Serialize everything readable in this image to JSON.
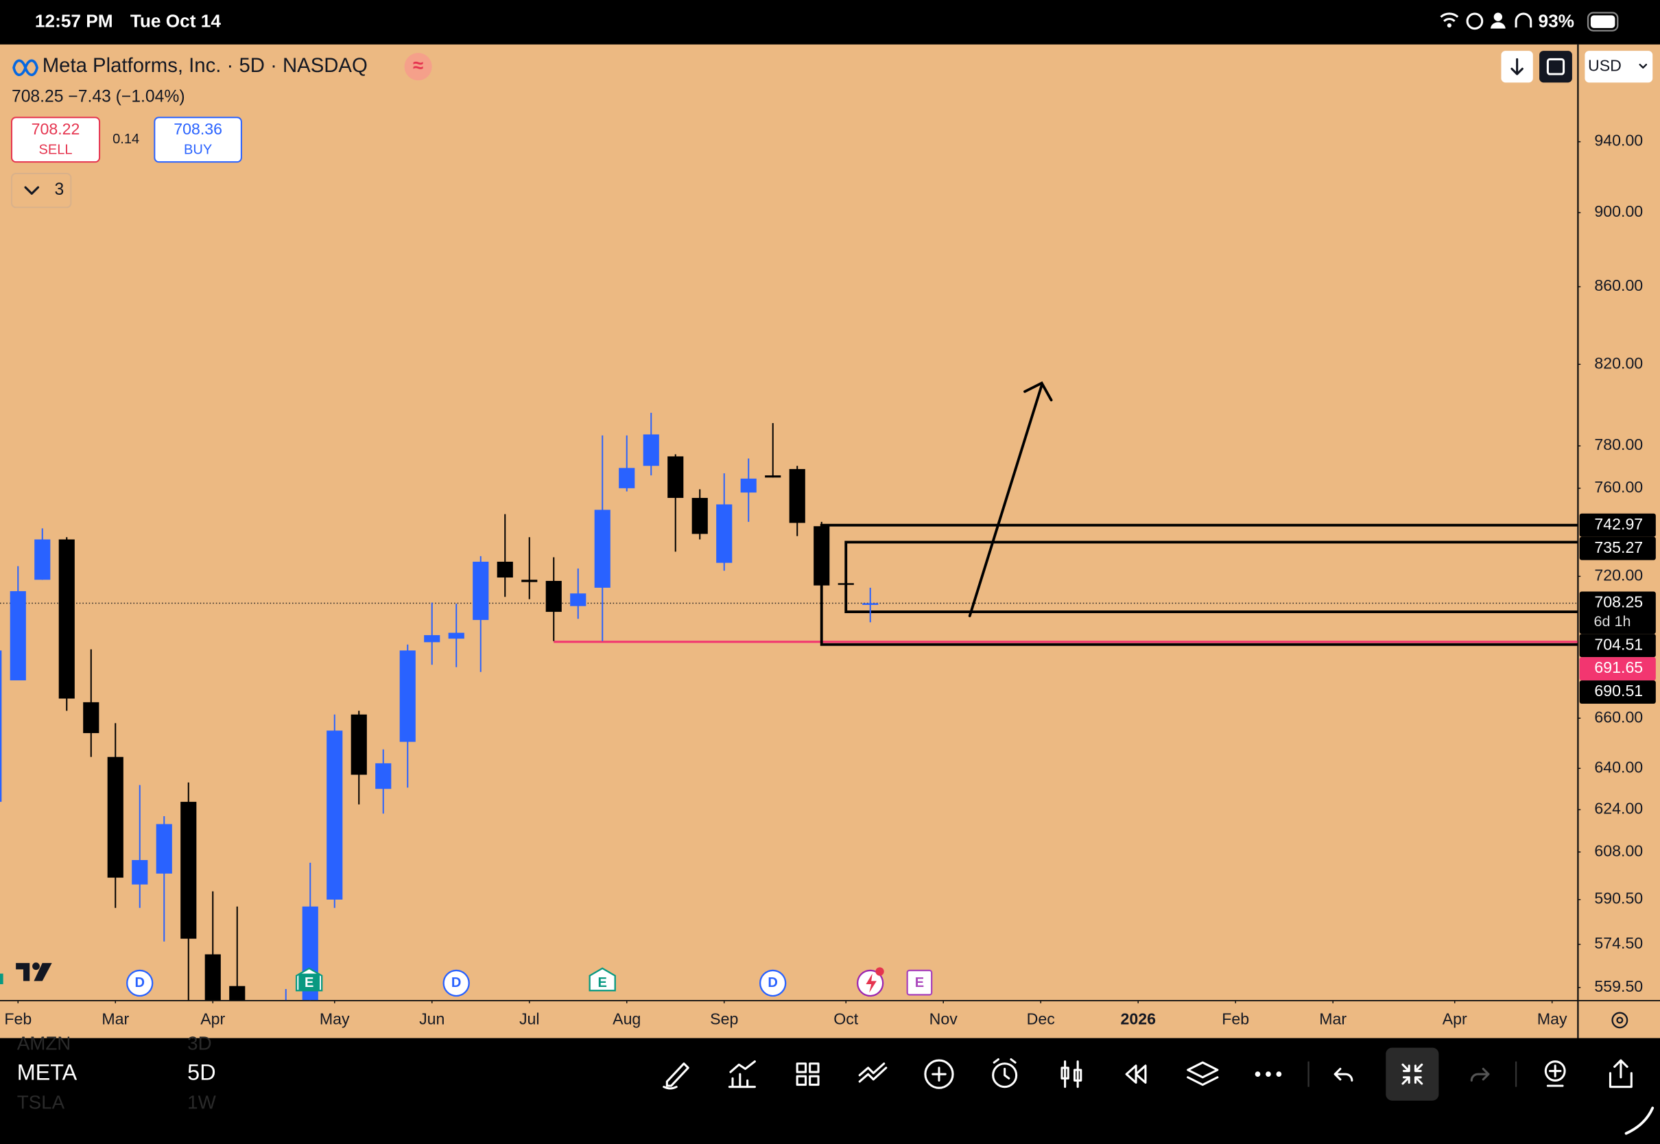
{
  "status_bar": {
    "time": "12:57 PM",
    "date": "Tue Oct 14",
    "battery": "93%"
  },
  "header": {
    "title": "Meta Platforms, Inc. · 5D · NASDAQ",
    "price_line": "708.25  −7.43 (−1.04%)",
    "sell_price": "708.22",
    "sell_label": "SELL",
    "spread": "0.14",
    "buy_price": "708.36",
    "buy_label": "BUY",
    "indicators_count": "3",
    "currency": "USD"
  },
  "events": [
    {
      "label": "D"
    },
    {
      "label": "E"
    },
    {
      "label": "D"
    },
    {
      "label": "E"
    },
    {
      "label": "D"
    },
    {
      "label": "E"
    }
  ],
  "chart_data": {
    "type": "candlestick",
    "log_scale": true,
    "up_color": "#2962ff",
    "down_color": "#000000",
    "xlim": [
      0.26,
      65.04
    ],
    "ylim": [
      555.2,
      997.8
    ],
    "yticks": [
      {
        "value": 940,
        "label": "940.00"
      },
      {
        "value": 900,
        "label": "900.00"
      },
      {
        "value": 860,
        "label": "860.00"
      },
      {
        "value": 820,
        "label": "820.00"
      },
      {
        "value": 780,
        "label": "780.00"
      },
      {
        "value": 760,
        "label": "760.00"
      },
      {
        "value": 720,
        "label": "720.00"
      },
      {
        "value": 660,
        "label": "660.00"
      },
      {
        "value": 640,
        "label": "640.00"
      },
      {
        "value": 624,
        "label": "624.00"
      },
      {
        "value": 608,
        "label": "608.00"
      },
      {
        "value": 590.5,
        "label": "590.50"
      },
      {
        "value": 574.5,
        "label": "574.50"
      },
      {
        "value": 559.5,
        "label": "559.50"
      }
    ],
    "xticks": [
      {
        "value": 1,
        "label": "Feb"
      },
      {
        "value": 5,
        "label": "Mar"
      },
      {
        "value": 9,
        "label": "Apr"
      },
      {
        "value": 14,
        "label": "May"
      },
      {
        "value": 18,
        "label": "Jun"
      },
      {
        "value": 22,
        "label": "Jul"
      },
      {
        "value": 26,
        "label": "Aug"
      },
      {
        "value": 30,
        "label": "Sep"
      },
      {
        "value": 35,
        "label": "Oct"
      },
      {
        "value": 39,
        "label": "Nov"
      },
      {
        "value": 43,
        "label": "Dec"
      },
      {
        "value": 47,
        "label": "2026",
        "bold": true
      },
      {
        "value": 51,
        "label": "Feb"
      },
      {
        "value": 55,
        "label": "Mar"
      },
      {
        "value": 60,
        "label": "Apr"
      },
      {
        "value": 64,
        "label": "May"
      }
    ],
    "candles": {
      "x": [
        0,
        1,
        2,
        3,
        4,
        5,
        6,
        7,
        8,
        9,
        10,
        12,
        13,
        14,
        15,
        16,
        17,
        18,
        19,
        20,
        21,
        22,
        23,
        24,
        25,
        26,
        27,
        28,
        29,
        30,
        31,
        32,
        33,
        34,
        35,
        36
      ],
      "open": [
        627,
        675.5,
        718.5,
        736.5,
        666.5,
        644.5,
        596,
        600,
        627,
        571,
        560,
        545,
        550,
        590.5,
        661.5,
        632,
        650.5,
        691.5,
        693,
        701,
        726.5,
        718.5,
        718,
        707,
        715,
        760,
        770.5,
        775,
        755.5,
        726,
        758,
        766,
        769,
        742.5,
        717,
        708
      ],
      "high": [
        690,
        724.5,
        741.5,
        737.5,
        688.5,
        658,
        633.5,
        621.5,
        634.5,
        593.5,
        588,
        559,
        604,
        661.5,
        663,
        647.5,
        690.5,
        708.5,
        708,
        729,
        748,
        737.5,
        728.5,
        723.5,
        785,
        785,
        796,
        776,
        759.5,
        767,
        774,
        791,
        770.5,
        744.5,
        717.5,
        715
      ],
      "low": [
        620,
        675.5,
        718.5,
        663,
        644.5,
        587.5,
        587.5,
        575.5,
        550,
        550,
        540,
        540,
        545,
        587.5,
        626,
        622.5,
        632.5,
        682,
        681,
        679,
        711,
        710,
        692,
        701.5,
        692,
        758.5,
        766,
        731,
        736.5,
        722.5,
        744.5,
        765,
        738,
        690.5,
        716,
        700
      ],
      "close": [
        688,
        713.5,
        736.5,
        668,
        654,
        598.5,
        605,
        618.5,
        576.5,
        550,
        545,
        550,
        588,
        655,
        637.5,
        642,
        688,
        694.5,
        695.5,
        726.5,
        719.5,
        717.5,
        704.5,
        712.5,
        750,
        769.5,
        785.5,
        755.5,
        739,
        752.5,
        764.5,
        765,
        744,
        716,
        716.5,
        708.25
      ]
    },
    "boxes": [
      {
        "top": 742.97,
        "bottom": 690.51,
        "start": 34
      },
      {
        "top": 735.27,
        "bottom": 704.51,
        "start": 35
      }
    ],
    "support_line": {
      "value": 691.65,
      "start": 23,
      "color": "#f23670"
    },
    "last_price": {
      "value": 708.25,
      "countdown": "6d 1h"
    }
  },
  "bottom_bar": {
    "symbol": "META",
    "interval": "5D",
    "symbol_above": "AMZN",
    "interval_above": "3D",
    "symbol_below": "TSLA",
    "interval_below": "1W"
  }
}
